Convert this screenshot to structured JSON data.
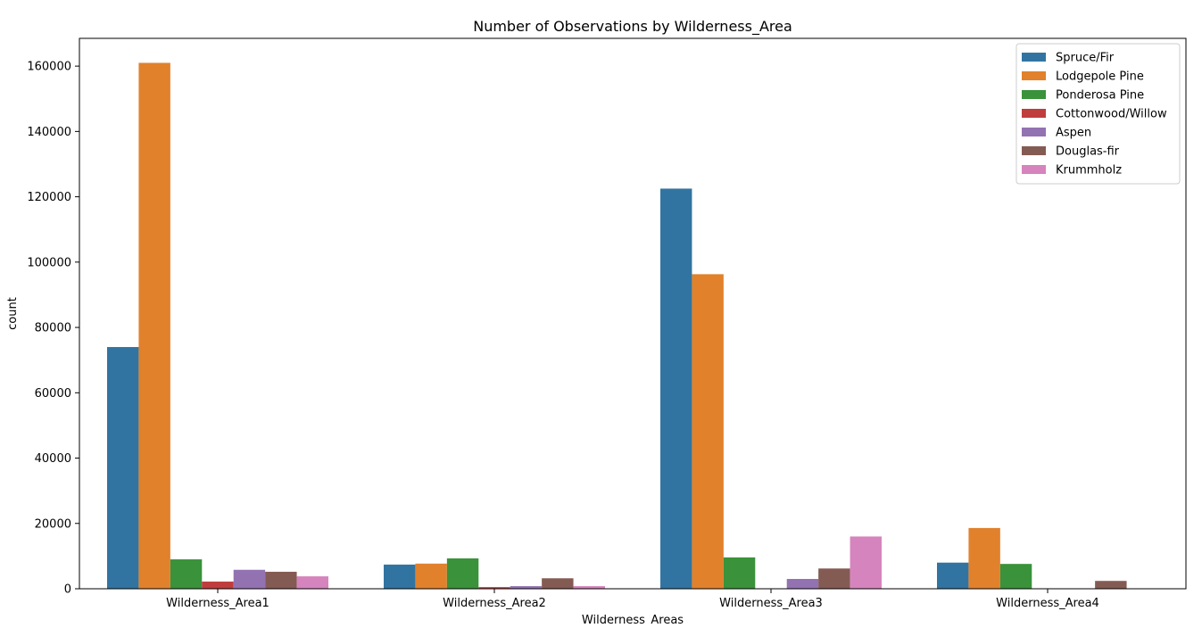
{
  "chart_data": {
    "type": "bar",
    "title": "Number of Observations by Wilderness_Area",
    "xlabel": "Wilderness_Areas",
    "ylabel": "count",
    "categories": [
      "Wilderness_Area1",
      "Wilderness_Area2",
      "Wilderness_Area3",
      "Wilderness_Area4"
    ],
    "ylim": [
      0,
      168500
    ],
    "yticks": [
      0,
      20000,
      40000,
      60000,
      80000,
      100000,
      120000,
      140000,
      160000
    ],
    "grid": false,
    "legend_position": "top-right",
    "series": [
      {
        "name": "Spruce/Fir",
        "color": "#3274a1",
        "values": [
          74000,
          7400,
          122500,
          8000
        ]
      },
      {
        "name": "Lodgepole Pine",
        "color": "#e1812c",
        "values": [
          161000,
          7700,
          96300,
          18600
        ]
      },
      {
        "name": "Ponderosa Pine",
        "color": "#3a923a",
        "values": [
          9000,
          9300,
          9600,
          7600
        ]
      },
      {
        "name": "Cottonwood/Willow",
        "color": "#c03d3e",
        "values": [
          2200,
          500,
          0,
          0
        ]
      },
      {
        "name": "Aspen",
        "color": "#9372b2",
        "values": [
          5800,
          800,
          3000,
          0
        ]
      },
      {
        "name": "Douglas-fir",
        "color": "#845b53",
        "values": [
          5200,
          3200,
          6200,
          2400
        ]
      },
      {
        "name": "Krummholz",
        "color": "#d684bd",
        "values": [
          3800,
          800,
          16000,
          0
        ]
      }
    ]
  }
}
